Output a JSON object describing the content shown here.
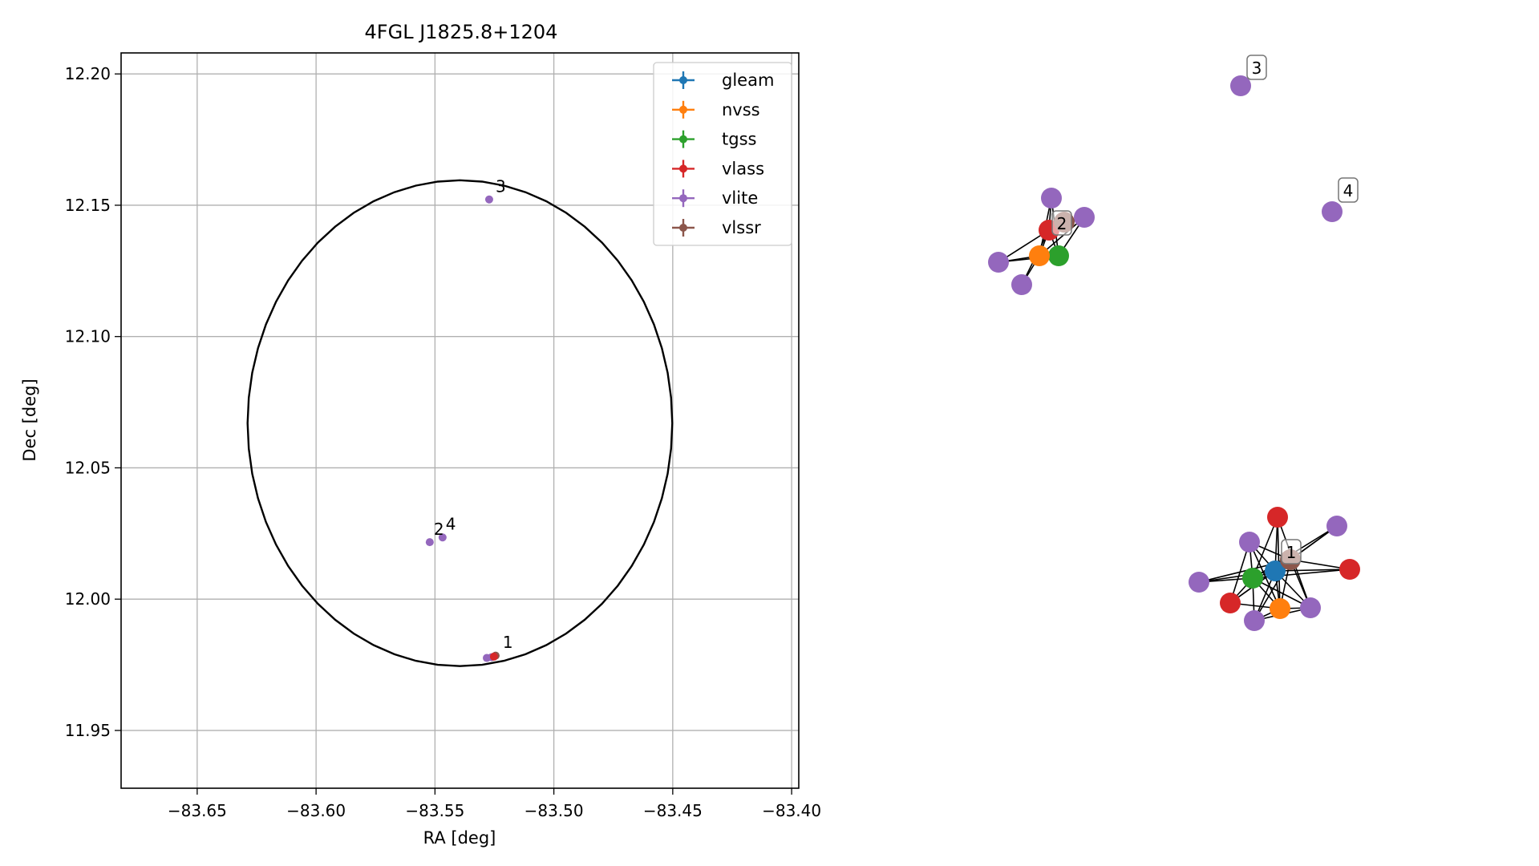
{
  "colors": {
    "gleam": "#1f77b4",
    "nvss": "#ff7f0e",
    "tgss": "#2ca02c",
    "vlass": "#d62728",
    "vlite": "#9467bd",
    "vlssr": "#8c564b",
    "grid": "#b0b0b0",
    "ellipse": "#000000"
  },
  "chart_data": [
    {
      "type": "scatter",
      "title": "4FGL J1825.8+1204",
      "xlabel": "RA [deg]",
      "ylabel": "Dec [deg]",
      "xlim": [
        -83.682,
        -83.397
      ],
      "ylim": [
        11.928,
        12.208
      ],
      "xticks": [
        -83.65,
        -83.6,
        -83.55,
        -83.5,
        -83.45,
        -83.4
      ],
      "xtick_labels": [
        "−83.65",
        "−83.60",
        "−83.55",
        "−83.50",
        "−83.45",
        "−83.40"
      ],
      "yticks": [
        11.95,
        12.0,
        12.05,
        12.1,
        12.15,
        12.2
      ],
      "ytick_labels": [
        "11.95",
        "12.00",
        "12.05",
        "12.10",
        "12.15",
        "12.20"
      ],
      "grid": true,
      "legend_position": "top-right",
      "legend": [
        "gleam",
        "nvss",
        "tgss",
        "vlass",
        "vlite",
        "vlssr"
      ],
      "ellipse": {
        "center_ra": -83.5395,
        "center_dec": 12.067,
        "semi_ra": 0.0893,
        "semi_dec": 0.0925
      },
      "series": [
        {
          "name": "vlite",
          "points": [
            {
              "ra": -83.5272,
              "dec": 12.1522
            },
            {
              "ra": -83.5522,
              "dec": 12.0217
            },
            {
              "ra": -83.5468,
              "dec": 12.0235
            },
            {
              "ra": -83.5282,
              "dec": 11.9776
            },
            {
              "ra": -83.5262,
              "dec": 11.9779
            }
          ]
        },
        {
          "name": "vlssr",
          "points": [
            {
              "ra": -83.5245,
              "dec": 11.9785
            }
          ]
        },
        {
          "name": "vlass",
          "points": [
            {
              "ra": -83.5252,
              "dec": 11.9781
            }
          ]
        }
      ],
      "annotations": [
        {
          "text": "1",
          "ra": -83.5215,
          "dec": 11.9815
        },
        {
          "text": "2",
          "ra": -83.5505,
          "dec": 12.0245
        },
        {
          "text": "3",
          "ra": -83.5245,
          "dec": 12.155
        },
        {
          "text": "4",
          "ra": -83.5455,
          "dec": 12.0265
        }
      ]
    },
    {
      "type": "network",
      "node_labels": [
        "1",
        "2",
        "3",
        "4"
      ]
    }
  ]
}
